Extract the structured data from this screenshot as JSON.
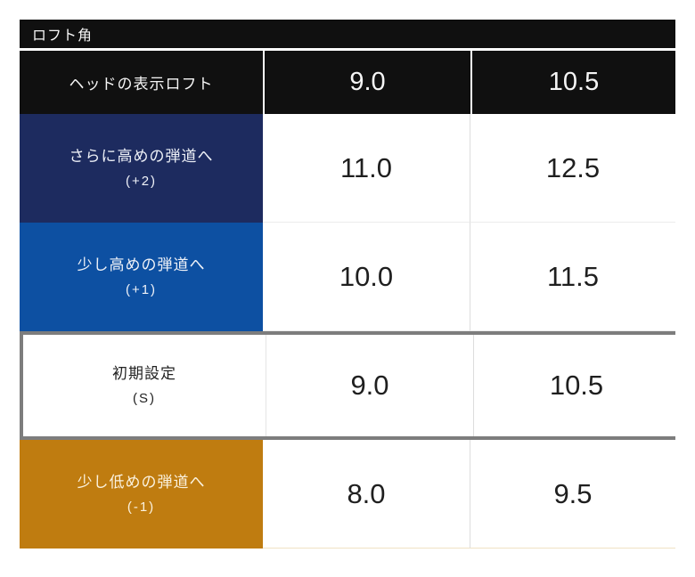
{
  "page": {
    "title_bar": "ロフト角"
  },
  "table": {
    "header": {
      "row_label": "ヘッドの表示ロフト",
      "columns": [
        "9.0",
        "10.5"
      ]
    },
    "rows": [
      {
        "id": "plus2",
        "label": "さらに高めの弾道へ",
        "sub": "(+2)",
        "values": [
          "11.0",
          "12.5"
        ],
        "bg": "#1d2b5f",
        "fg": "#eff2f8",
        "highlight": false
      },
      {
        "id": "plus1",
        "label": "少し高めの弾道へ",
        "sub": "(+1)",
        "values": [
          "10.0",
          "11.5"
        ],
        "bg": "#0d50a2",
        "fg": "#eff2f8",
        "highlight": false
      },
      {
        "id": "default",
        "label": "初期設定",
        "sub": "(S)",
        "values": [
          "9.0",
          "10.5"
        ],
        "bg": "#ffffff",
        "fg": "#222222",
        "highlight": true
      },
      {
        "id": "minus1",
        "label": "少し低めの弾道へ",
        "sub": "(-1)",
        "values": [
          "8.0",
          "9.5"
        ],
        "bg": "#bf7c10",
        "fg": "#fbf2df",
        "highlight": false
      }
    ]
  },
  "colors": {
    "bar_black": "#101010",
    "navy": "#1d2b5f",
    "blue": "#0d50a2",
    "orange": "#bf7c10",
    "highlight_border": "#7d7d7d",
    "value_text": "#1f1f1f"
  },
  "chart_data": {
    "type": "table",
    "title": "ロフト角",
    "columns": [
      "ヘッドの表示ロフト",
      "9.0",
      "10.5"
    ],
    "rows": [
      [
        "さらに高めの弾道へ (+2)",
        11.0,
        12.5
      ],
      [
        "少し高めの弾道へ (+1)",
        10.0,
        11.5
      ],
      [
        "初期設定 (S)",
        9.0,
        10.5
      ],
      [
        "少し低めの弾道へ (-1)",
        8.0,
        9.5
      ]
    ],
    "notes": "初期設定 (S) row is highlighted with a gray border; row headers are color-coded: +2 navy, +1 blue, S white, -1 orange"
  }
}
